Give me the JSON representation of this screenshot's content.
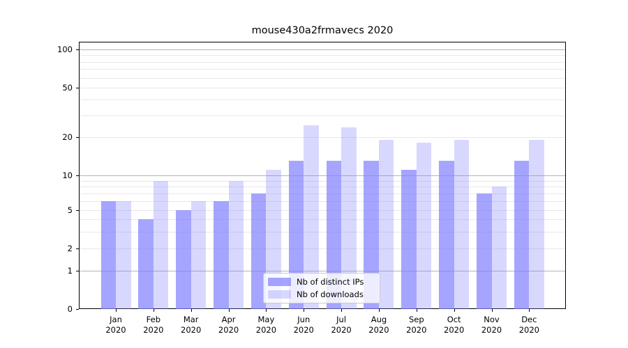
{
  "title": "mouse430a2frmavecs 2020",
  "y_axis": {
    "ticks": [
      100,
      50,
      20,
      10,
      5,
      2,
      1,
      0
    ]
  },
  "x_axis": {
    "year": "2020",
    "months": [
      "Jan",
      "Feb",
      "Mar",
      "Apr",
      "May",
      "Jun",
      "Jul",
      "Aug",
      "Sep",
      "Oct",
      "Nov",
      "Dec"
    ]
  },
  "legend": {
    "items": [
      {
        "label": "Nb of distinct IPs"
      },
      {
        "label": "Nb of downloads"
      }
    ]
  },
  "colors": {
    "bar_base": "#7f7fff",
    "ips_fill": "rgba(127,127,255,0.7)",
    "downloads_fill": "rgba(127,127,255,0.3)",
    "major_grid": "#b4b4b4",
    "minor_grid": "#e8e8e8",
    "axis": "#000000"
  },
  "chart_data": {
    "type": "bar",
    "title": "mouse430a2frmavecs 2020",
    "categories": [
      "Jan 2020",
      "Feb 2020",
      "Mar 2020",
      "Apr 2020",
      "May 2020",
      "Jun 2020",
      "Jul 2020",
      "Aug 2020",
      "Sep 2020",
      "Oct 2020",
      "Nov 2020",
      "Dec 2020"
    ],
    "series": [
      {
        "name": "Nb of distinct IPs",
        "fill": "rgba(127,127,255,0.7)",
        "values": [
          6,
          4,
          5,
          6,
          7,
          13,
          13,
          13,
          11,
          13,
          7,
          13
        ]
      },
      {
        "name": "Nb of downloads",
        "fill": "rgba(127,127,255,0.3)",
        "values": [
          6,
          9,
          6,
          9,
          11,
          25,
          24,
          19,
          18,
          19,
          8,
          19
        ]
      }
    ],
    "xlabel": "",
    "ylabel": "",
    "yscale": "symlog-like",
    "y_tick_values": [
      0,
      1,
      2,
      5,
      10,
      20,
      50,
      100
    ],
    "ylim": [
      0,
      100
    ],
    "grid": true,
    "legend_position": "lower center inside"
  }
}
